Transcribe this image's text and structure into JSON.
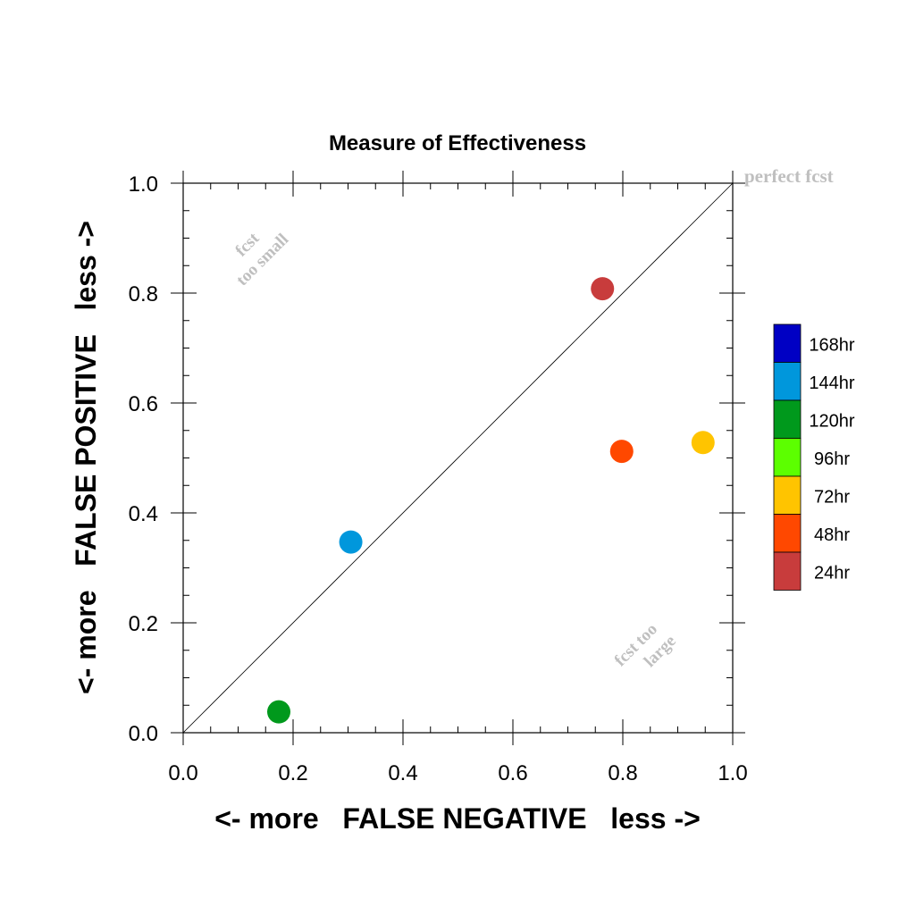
{
  "chart_data": {
    "type": "scatter",
    "title": "Measure of Effectiveness",
    "xlabel": "<- more   FALSE NEGATIVE   less ->",
    "ylabel": "<- more   FALSE POSITIVE   less ->",
    "xlim": [
      0.0,
      1.0
    ],
    "ylim": [
      0.0,
      1.0
    ],
    "xticks": [
      "0.0",
      "0.2",
      "0.4",
      "0.6",
      "0.8",
      "1.0"
    ],
    "yticks": [
      "0.0",
      "0.2",
      "0.4",
      "0.6",
      "0.8",
      "1.0"
    ],
    "grid": false,
    "diagonal_line": true,
    "annotations": {
      "perfect": "perfect fcst",
      "small_line1": "fcst",
      "small_line2": "too small",
      "large_line1": "fcst too",
      "large_line2": "large"
    },
    "legend": {
      "placement": "right",
      "entries": [
        {
          "label": "168hr",
          "color": "#0000c4"
        },
        {
          "label": "144hr",
          "color": "#0097dc"
        },
        {
          "label": "120hr",
          "color": "#00991c"
        },
        {
          "label": "96hr",
          "color": "#5cff00"
        },
        {
          "label": "72hr",
          "color": "#ffc400"
        },
        {
          "label": "48hr",
          "color": "#ff4800"
        },
        {
          "label": "24hr",
          "color": "#c83c3c"
        }
      ]
    },
    "points": [
      {
        "series": "24hr",
        "x": 0.763,
        "y": 0.808,
        "color": "#c83c3c"
      },
      {
        "series": "48hr",
        "x": 0.798,
        "y": 0.512,
        "color": "#ff4800"
      },
      {
        "series": "72hr",
        "x": 0.946,
        "y": 0.528,
        "color": "#ffc400"
      },
      {
        "series": "144hr",
        "x": 0.305,
        "y": 0.347,
        "color": "#0097dc"
      },
      {
        "series": "120hr",
        "x": 0.174,
        "y": 0.038,
        "color": "#00991c"
      }
    ]
  }
}
